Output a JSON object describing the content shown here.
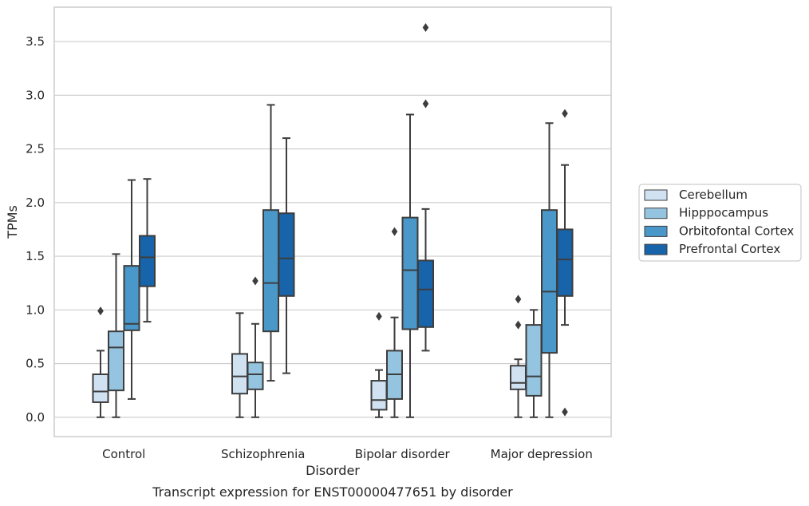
{
  "chart_data": {
    "type": "box",
    "xlabel": "Disorder",
    "ylabel": "TPMs",
    "caption": "Transcript expression for ENST00000477651 by disorder",
    "ylim": [
      -0.18,
      3.82
    ],
    "yticks": [
      "0.0",
      "0.5",
      "1.0",
      "1.5",
      "2.0",
      "2.5",
      "3.0",
      "3.5"
    ],
    "ytick_values": [
      0.0,
      0.5,
      1.0,
      1.5,
      2.0,
      2.5,
      3.0,
      3.5
    ],
    "grid": "horizontal",
    "legend_position": "right",
    "categories": [
      "Control",
      "Schizophrenia",
      "Bipolar disorder",
      "Major depression"
    ],
    "series": [
      {
        "name": "Cerebellum",
        "color": "#d0e1f2",
        "boxes": [
          {
            "min": 0.0,
            "q1": 0.14,
            "median": 0.24,
            "q3": 0.4,
            "max": 0.62,
            "outliers": [
              0.99
            ]
          },
          {
            "min": 0.0,
            "q1": 0.22,
            "median": 0.38,
            "q3": 0.59,
            "max": 0.97,
            "outliers": []
          },
          {
            "min": 0.0,
            "q1": 0.07,
            "median": 0.16,
            "q3": 0.34,
            "max": 0.44,
            "outliers": [
              0.94
            ]
          },
          {
            "min": 0.0,
            "q1": 0.26,
            "median": 0.32,
            "q3": 0.48,
            "max": 0.54,
            "outliers": [
              0.86,
              1.1
            ]
          }
        ]
      },
      {
        "name": "Hipppocampus",
        "color": "#94c4df",
        "boxes": [
          {
            "min": 0.0,
            "q1": 0.25,
            "median": 0.65,
            "q3": 0.8,
            "max": 1.52,
            "outliers": []
          },
          {
            "min": 0.0,
            "q1": 0.26,
            "median": 0.4,
            "q3": 0.51,
            "max": 0.87,
            "outliers": [
              1.27
            ]
          },
          {
            "min": 0.0,
            "q1": 0.17,
            "median": 0.4,
            "q3": 0.62,
            "max": 0.93,
            "outliers": [
              1.73
            ]
          },
          {
            "min": 0.0,
            "q1": 0.2,
            "median": 0.38,
            "q3": 0.86,
            "max": 1.0,
            "outliers": []
          }
        ]
      },
      {
        "name": "Orbitofontal Cortex",
        "color": "#4a98c9",
        "boxes": [
          {
            "min": 0.17,
            "q1": 0.81,
            "median": 0.87,
            "q3": 1.41,
            "max": 2.21,
            "outliers": []
          },
          {
            "min": 0.34,
            "q1": 0.8,
            "median": 1.25,
            "q3": 1.93,
            "max": 2.91,
            "outliers": []
          },
          {
            "min": 0.0,
            "q1": 0.82,
            "median": 1.37,
            "q3": 1.86,
            "max": 2.82,
            "outliers": []
          },
          {
            "min": 0.0,
            "q1": 0.6,
            "median": 1.17,
            "q3": 1.93,
            "max": 2.74,
            "outliers": []
          }
        ]
      },
      {
        "name": "Prefrontal Cortex",
        "color": "#1764ab",
        "boxes": [
          {
            "min": 0.89,
            "q1": 1.22,
            "median": 1.49,
            "q3": 1.69,
            "max": 2.22,
            "outliers": []
          },
          {
            "min": 0.41,
            "q1": 1.13,
            "median": 1.48,
            "q3": 1.9,
            "max": 2.6,
            "outliers": []
          },
          {
            "min": 0.62,
            "q1": 0.84,
            "median": 1.19,
            "q3": 1.46,
            "max": 1.94,
            "outliers": [
              2.92,
              3.63
            ]
          },
          {
            "min": 0.86,
            "q1": 1.13,
            "median": 1.47,
            "q3": 1.75,
            "max": 2.35,
            "outliers": [
              0.05,
              2.83
            ]
          }
        ]
      }
    ]
  }
}
